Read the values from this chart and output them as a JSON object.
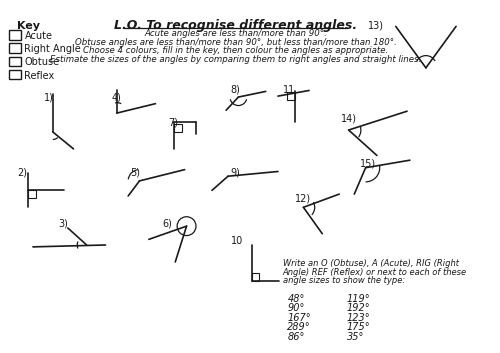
{
  "title": "L.O. To recognise different angles.",
  "instructions": [
    "Acute angles are less than/more than 90°.",
    "Obtuse angles are less than/more than 90°, but less than/more than 180°.",
    "Choose 4 colours, fill in the key, then colour the angles as appropriate.",
    "Estimate the sizes of the angles by comparing them to right angles and straight lines."
  ],
  "key_label": "Key",
  "key_items": [
    "Acute",
    "Right Angle",
    "Obtuse",
    "Reflex"
  ],
  "bottom_text_lines": [
    "Write an O (Obtuse), A (Acute), RIG (Right",
    "Angle) REF (Reflex) or next to each of these",
    "angle sizes to show the type:"
  ],
  "bottom_data": [
    [
      "48°",
      "119°"
    ],
    [
      "90°",
      "192°"
    ],
    [
      "167°",
      "123°"
    ],
    [
      "289°",
      "175°"
    ],
    [
      "86°",
      "35°"
    ]
  ],
  "bg_color": "#ffffff",
  "line_color": "#1a1a1a",
  "text_color": "#1a1a1a"
}
